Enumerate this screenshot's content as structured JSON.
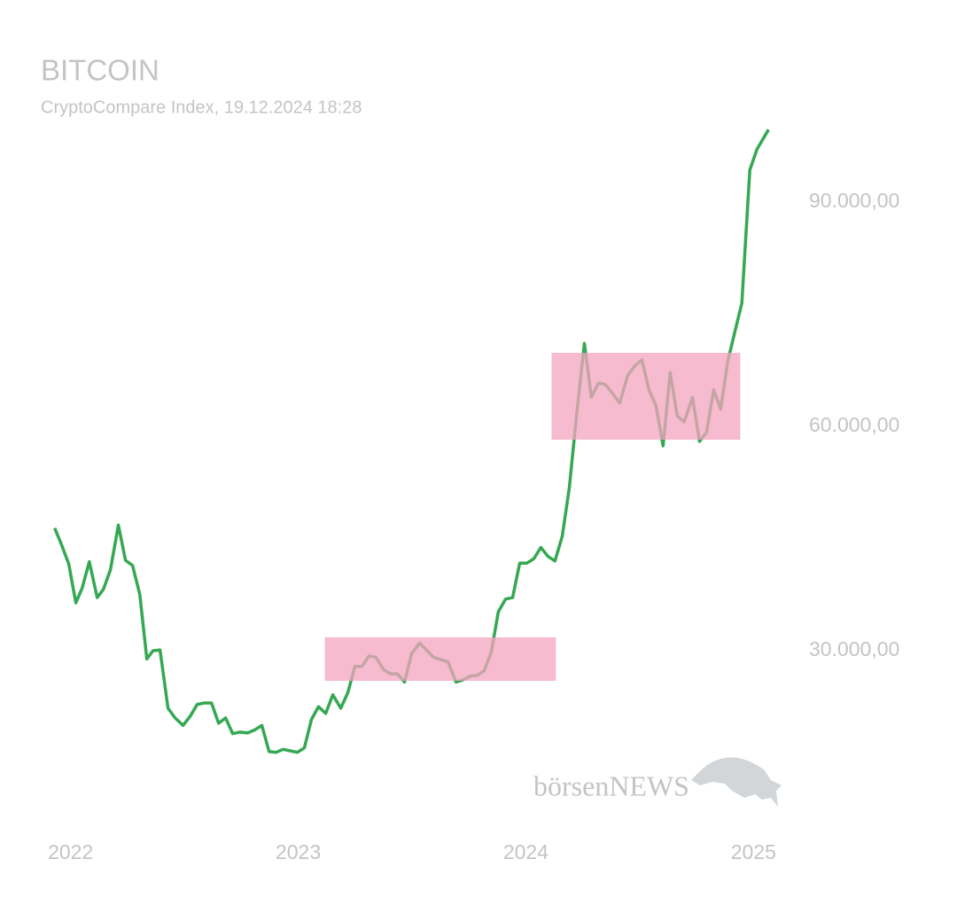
{
  "chart_data": {
    "type": "line",
    "title": "BITCOIN",
    "subtitle": "CryptoCompare Index, 19.12.2024 18:28",
    "watermark": "börsenNEWS",
    "x": [
      2021.93,
      2021.961,
      2021.992,
      2022.023,
      2022.051,
      2022.082,
      2022.117,
      2022.144,
      2022.175,
      2022.21,
      2022.241,
      2022.272,
      2022.304,
      2022.335,
      2022.362,
      2022.393,
      2022.428,
      2022.459,
      2022.494,
      2022.525,
      2022.556,
      2022.588,
      2022.619,
      2022.65,
      2022.681,
      2022.712,
      2022.743,
      2022.778,
      2022.809,
      2022.84,
      2022.872,
      2022.903,
      2022.934,
      2022.965,
      2022.996,
      2023.027,
      2023.058,
      2023.089,
      2023.121,
      2023.152,
      2023.187,
      2023.218,
      2023.249,
      2023.28,
      2023.311,
      2023.342,
      2023.374,
      2023.405,
      2023.436,
      2023.467,
      2023.498,
      2023.533,
      2023.56,
      2023.595,
      2023.626,
      2023.658,
      2023.693,
      2023.724,
      2023.755,
      2023.786,
      2023.817,
      2023.848,
      2023.879,
      2023.911,
      2023.942,
      2023.973,
      2024.004,
      2024.035,
      2024.066,
      2024.097,
      2024.128,
      2024.16,
      2024.191,
      2024.222,
      2024.257,
      2024.288,
      2024.319,
      2024.35,
      2024.381,
      2024.412,
      2024.447,
      2024.479,
      2024.51,
      2024.541,
      2024.572,
      2024.603,
      2024.634,
      2024.665,
      2024.696,
      2024.732,
      2024.763,
      2024.794,
      2024.825,
      2024.856,
      2024.887,
      2024.918,
      2024.949,
      2024.984,
      2025.016,
      2025.066
    ],
    "series": [
      {
        "color": "#34a853",
        "values": [
          46400,
          44100,
          41600,
          36400,
          38400,
          41900,
          37100,
          38200,
          40800,
          46800,
          42100,
          41400,
          37500,
          28900,
          30000,
          30100,
          22300,
          21000,
          20000,
          21200,
          22800,
          23000,
          23000,
          20300,
          21000,
          18900,
          19100,
          19000,
          19400,
          20000,
          16500,
          16400,
          16800,
          16600,
          16400,
          17000,
          20800,
          22500,
          21600,
          24100,
          22300,
          24400,
          27900,
          27900,
          29300,
          29100,
          27500,
          26900,
          26900,
          25800,
          29600,
          31000,
          30200,
          29100,
          28800,
          28500,
          25800,
          26100,
          26600,
          26700,
          27300,
          29800,
          35200,
          36900,
          37100,
          41700,
          41700,
          42300,
          43800,
          42600,
          42000,
          45300,
          51800,
          61300,
          71100,
          63900,
          65800,
          65600,
          64400,
          63100,
          66800,
          68100,
          68900,
          64900,
          62700,
          57400,
          67200,
          61400,
          60600,
          63900,
          58000,
          59200,
          64900,
          62300,
          68700,
          72600,
          76500,
          94300,
          97100,
          99700
        ]
      }
    ],
    "highlights": [
      {
        "x": [
          2023.117,
          2024.132
        ],
        "y": [
          25968,
          31779
        ]
      },
      {
        "x": [
          2024.113,
          2024.942
        ],
        "y": [
          58221,
          69842
        ]
      }
    ],
    "highlight_color": "#f4a4bf",
    "xlim": [
      2021.9,
      2025.1
    ],
    "xticks": [
      2022,
      2023,
      2024,
      2025
    ],
    "ylim": [
      5573,
      100435
    ],
    "yticks": [
      {
        "value": 30000,
        "label": "30.000,00"
      },
      {
        "value": 60000,
        "label": "60.000,00"
      },
      {
        "value": 90000,
        "label": "90.000,00"
      }
    ],
    "grid": false
  }
}
